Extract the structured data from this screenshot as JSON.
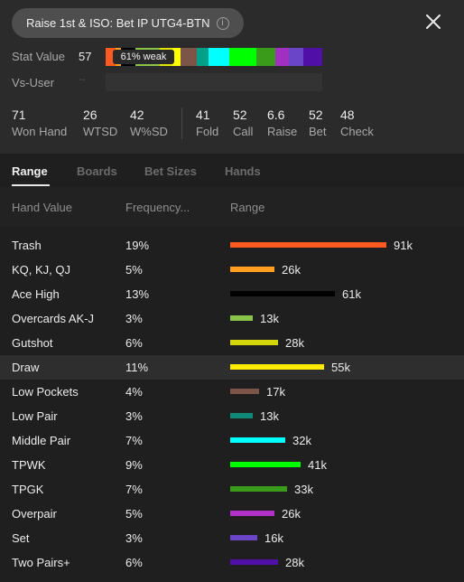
{
  "header": {
    "title": "Raise 1st & ISO: Bet IP UTG4-BTN",
    "info_icon": "info-icon",
    "close_icon": "close-icon"
  },
  "stat_value": {
    "label": "Stat Value",
    "value": "57",
    "badge": "61% weak",
    "strip_colors": [
      "#ff5a1f",
      "#ff9e1f",
      "#000000",
      "#8bc34a",
      "#e6e600",
      "#ffff00",
      "#7d5548",
      "#00a08a",
      "#00ffff",
      "#00ff00",
      "#3a9a1a",
      "#a030c0",
      "#6a45c8",
      "#5010a8"
    ]
  },
  "vs_user": {
    "label": "Vs-User",
    "value": "--"
  },
  "stats": [
    {
      "value": "71",
      "label": "Won Hand"
    },
    {
      "value": "26",
      "label": "WTSD"
    },
    {
      "value": "42",
      "label": "W%SD"
    },
    {
      "value": "41",
      "label": "Fold"
    },
    {
      "value": "52",
      "label": "Call"
    },
    {
      "value": "6.6",
      "label": "Raise"
    },
    {
      "value": "52",
      "label": "Bet"
    },
    {
      "value": "48",
      "label": "Check"
    }
  ],
  "tabs": [
    "Range",
    "Boards",
    "Bet Sizes",
    "Hands"
  ],
  "active_tab": "Range",
  "columns": {
    "hand_value": "Hand Value",
    "frequency": "Frequency...",
    "range": "Range"
  },
  "rows": [
    {
      "name": "Trash",
      "freq": "19%",
      "count": "91k",
      "fraction": 1.0,
      "color": "#ff5a1f"
    },
    {
      "name": "KQ, KJ, QJ",
      "freq": "5%",
      "count": "26k",
      "fraction": 0.286,
      "color": "#ff9e1f"
    },
    {
      "name": "Ace High",
      "freq": "13%",
      "count": "61k",
      "fraction": 0.67,
      "color": "#000000"
    },
    {
      "name": "Overcards AK-J",
      "freq": "3%",
      "count": "13k",
      "fraction": 0.143,
      "color": "#8bc34a"
    },
    {
      "name": "Gutshot",
      "freq": "6%",
      "count": "28k",
      "fraction": 0.308,
      "color": "#d4d40a"
    },
    {
      "name": "Draw",
      "freq": "11%",
      "count": "55k",
      "fraction": 0.604,
      "color": "#ffeb00",
      "highlighted": true
    },
    {
      "name": "Low Pockets",
      "freq": "4%",
      "count": "17k",
      "fraction": 0.187,
      "color": "#7d5548"
    },
    {
      "name": "Low Pair",
      "freq": "3%",
      "count": "13k",
      "fraction": 0.143,
      "color": "#0f8a78"
    },
    {
      "name": "Middle Pair",
      "freq": "7%",
      "count": "32k",
      "fraction": 0.352,
      "color": "#00ffff"
    },
    {
      "name": "TPWK",
      "freq": "9%",
      "count": "41k",
      "fraction": 0.45,
      "color": "#00ff00"
    },
    {
      "name": "TPGK",
      "freq": "7%",
      "count": "33k",
      "fraction": 0.363,
      "color": "#3a9a1a"
    },
    {
      "name": "Overpair",
      "freq": "5%",
      "count": "26k",
      "fraction": 0.286,
      "color": "#b030c8"
    },
    {
      "name": "Set",
      "freq": "3%",
      "count": "16k",
      "fraction": 0.176,
      "color": "#6a45c8"
    },
    {
      "name": "Two Pairs+",
      "freq": "6%",
      "count": "28k",
      "fraction": 0.308,
      "color": "#5010a8"
    }
  ]
}
